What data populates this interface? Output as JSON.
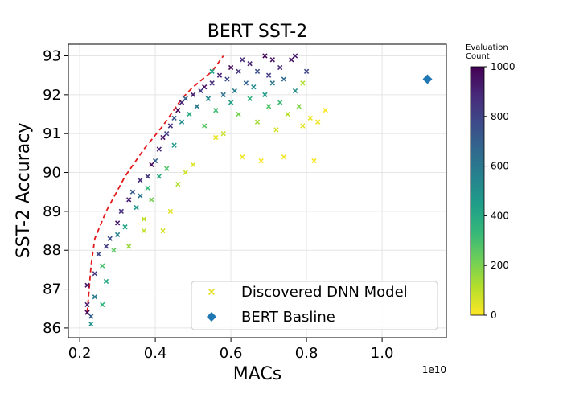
{
  "chart_data": {
    "type": "scatter",
    "title": "BERT SST-2",
    "xlabel": "MACs",
    "ylabel": "SST-2 Accuracy",
    "x_offset_text": "1e10",
    "xlim": [
      0.17,
      1.17
    ],
    "ylim": [
      85.75,
      93.3
    ],
    "x_ticks": [
      0.2,
      0.4,
      0.6,
      0.8,
      1.0
    ],
    "x_tick_labels": [
      "0.2",
      "0.4",
      "0.6",
      "0.8",
      "1.0"
    ],
    "y_ticks": [
      86,
      87,
      88,
      89,
      90,
      91,
      92,
      93
    ],
    "y_tick_labels": [
      "86",
      "87",
      "88",
      "89",
      "90",
      "91",
      "92",
      "93"
    ],
    "grid": true,
    "legend_position": "lower-right",
    "series": [
      {
        "name": "Discovered DNN Model",
        "marker": "x",
        "legend_color": "#e3e022",
        "colored_by": "Evaluation Count",
        "points": [
          [
            0.22,
            86.4,
            980
          ],
          [
            0.22,
            86.6,
            900
          ],
          [
            0.23,
            86.3,
            700
          ],
          [
            0.23,
            86.1,
            500
          ],
          [
            0.22,
            87.1,
            950
          ],
          [
            0.24,
            87.4,
            850
          ],
          [
            0.24,
            86.8,
            600
          ],
          [
            0.25,
            87.9,
            780
          ],
          [
            0.26,
            87.6,
            300
          ],
          [
            0.26,
            86.6,
            350
          ],
          [
            0.27,
            88.1,
            820
          ],
          [
            0.27,
            87.2,
            400
          ],
          [
            0.28,
            88.3,
            760
          ],
          [
            0.29,
            88.0,
            250
          ],
          [
            0.3,
            88.7,
            930
          ],
          [
            0.3,
            88.4,
            560
          ],
          [
            0.31,
            89.0,
            870
          ],
          [
            0.32,
            88.6,
            420
          ],
          [
            0.33,
            89.3,
            910
          ],
          [
            0.33,
            88.1,
            150
          ],
          [
            0.34,
            89.5,
            720
          ],
          [
            0.35,
            89.1,
            460
          ],
          [
            0.36,
            89.8,
            880
          ],
          [
            0.36,
            89.4,
            620
          ],
          [
            0.37,
            88.5,
            90
          ],
          [
            0.37,
            88.8,
            100
          ],
          [
            0.38,
            89.9,
            840
          ],
          [
            0.38,
            89.6,
            330
          ],
          [
            0.39,
            90.2,
            960
          ],
          [
            0.39,
            89.3,
            210
          ],
          [
            0.4,
            90.3,
            700
          ],
          [
            0.41,
            90.6,
            890
          ],
          [
            0.41,
            89.9,
            380
          ],
          [
            0.42,
            90.9,
            940
          ],
          [
            0.42,
            88.5,
            60
          ],
          [
            0.43,
            91.0,
            810
          ],
          [
            0.43,
            90.1,
            280
          ],
          [
            0.44,
            91.2,
            860
          ],
          [
            0.44,
            89.0,
            40
          ],
          [
            0.45,
            91.4,
            730
          ],
          [
            0.45,
            90.7,
            470
          ],
          [
            0.46,
            91.6,
            990
          ],
          [
            0.46,
            89.7,
            120
          ],
          [
            0.47,
            91.3,
            520
          ],
          [
            0.47,
            91.8,
            900
          ],
          [
            0.48,
            91.9,
            680
          ],
          [
            0.48,
            90.0,
            70
          ],
          [
            0.49,
            91.5,
            390
          ],
          [
            0.5,
            92.0,
            920
          ],
          [
            0.5,
            90.2,
            50
          ],
          [
            0.51,
            91.7,
            600
          ],
          [
            0.52,
            92.1,
            830
          ],
          [
            0.53,
            91.2,
            260
          ],
          [
            0.53,
            92.2,
            950
          ],
          [
            0.54,
            91.9,
            540
          ],
          [
            0.55,
            92.3,
            870
          ],
          [
            0.56,
            91.6,
            310
          ],
          [
            0.56,
            90.9,
            30
          ],
          [
            0.57,
            92.5,
            910
          ],
          [
            0.58,
            92.0,
            640
          ],
          [
            0.58,
            91.0,
            80
          ],
          [
            0.59,
            92.4,
            770
          ],
          [
            0.6,
            92.7,
            980
          ],
          [
            0.6,
            91.8,
            430
          ],
          [
            0.61,
            92.1,
            580
          ],
          [
            0.62,
            91.5,
            210
          ],
          [
            0.62,
            92.6,
            850
          ],
          [
            0.63,
            90.4,
            20
          ],
          [
            0.64,
            92.3,
            690
          ],
          [
            0.65,
            92.8,
            900
          ],
          [
            0.65,
            91.9,
            360
          ],
          [
            0.66,
            92.2,
            520
          ],
          [
            0.67,
            91.3,
            140
          ],
          [
            0.67,
            92.6,
            760
          ],
          [
            0.68,
            90.3,
            10
          ],
          [
            0.69,
            92.0,
            440
          ],
          [
            0.7,
            92.5,
            820
          ],
          [
            0.7,
            91.7,
            270
          ],
          [
            0.71,
            92.3,
            610
          ],
          [
            0.72,
            91.1,
            60
          ],
          [
            0.73,
            92.7,
            880
          ],
          [
            0.73,
            91.8,
            320
          ],
          [
            0.74,
            92.4,
            660
          ],
          [
            0.75,
            91.5,
            110
          ],
          [
            0.76,
            92.9,
            940
          ],
          [
            0.77,
            92.1,
            500
          ],
          [
            0.78,
            91.7,
            190
          ],
          [
            0.79,
            91.2,
            40
          ],
          [
            0.8,
            92.6,
            790
          ],
          [
            0.81,
            91.4,
            30
          ],
          [
            0.82,
            90.3,
            10
          ],
          [
            0.83,
            91.3,
            20
          ],
          [
            0.79,
            92.3,
            120
          ],
          [
            0.85,
            91.6,
            5
          ],
          [
            0.74,
            90.4,
            15
          ],
          [
            0.71,
            92.9,
            960
          ],
          [
            0.69,
            93.0,
            990
          ],
          [
            0.77,
            93.0,
            930
          ],
          [
            0.63,
            92.9,
            870
          ],
          [
            0.55,
            92.6,
            420
          ]
        ]
      },
      {
        "name": "BERT Basline",
        "marker": "diamond",
        "color": "#1f77b4",
        "points": [
          [
            1.12,
            92.4
          ]
        ]
      }
    ],
    "pareto_front": {
      "style": "dashed",
      "color": "#e31a1c",
      "points": [
        [
          0.22,
          86.4
        ],
        [
          0.23,
          87.6
        ],
        [
          0.24,
          88.3
        ],
        [
          0.27,
          89.0
        ],
        [
          0.32,
          89.9
        ],
        [
          0.37,
          90.6
        ],
        [
          0.42,
          91.2
        ],
        [
          0.47,
          91.9
        ],
        [
          0.5,
          92.2
        ],
        [
          0.55,
          92.6
        ],
        [
          0.58,
          93.0
        ]
      ]
    },
    "colorbar": {
      "title_line1": "Evaluation",
      "title_line2": "Count",
      "min": 0,
      "max": 1000,
      "ticks": [
        0,
        200,
        400,
        600,
        800,
        1000
      ],
      "tick_labels": [
        "0",
        "200",
        "400",
        "600",
        "800",
        "1000"
      ],
      "colormap": "viridis",
      "stops": [
        "#fde725",
        "#b5de2b",
        "#6ece58",
        "#35b779",
        "#1f9e89",
        "#26828e",
        "#31688e",
        "#3e4989",
        "#482878",
        "#440154"
      ]
    },
    "legend": [
      {
        "label": "Discovered DNN Model",
        "marker": "x",
        "color": "#e3e022"
      },
      {
        "label": "BERT Basline",
        "marker": "diamond",
        "color": "#1f77b4"
      }
    ]
  }
}
